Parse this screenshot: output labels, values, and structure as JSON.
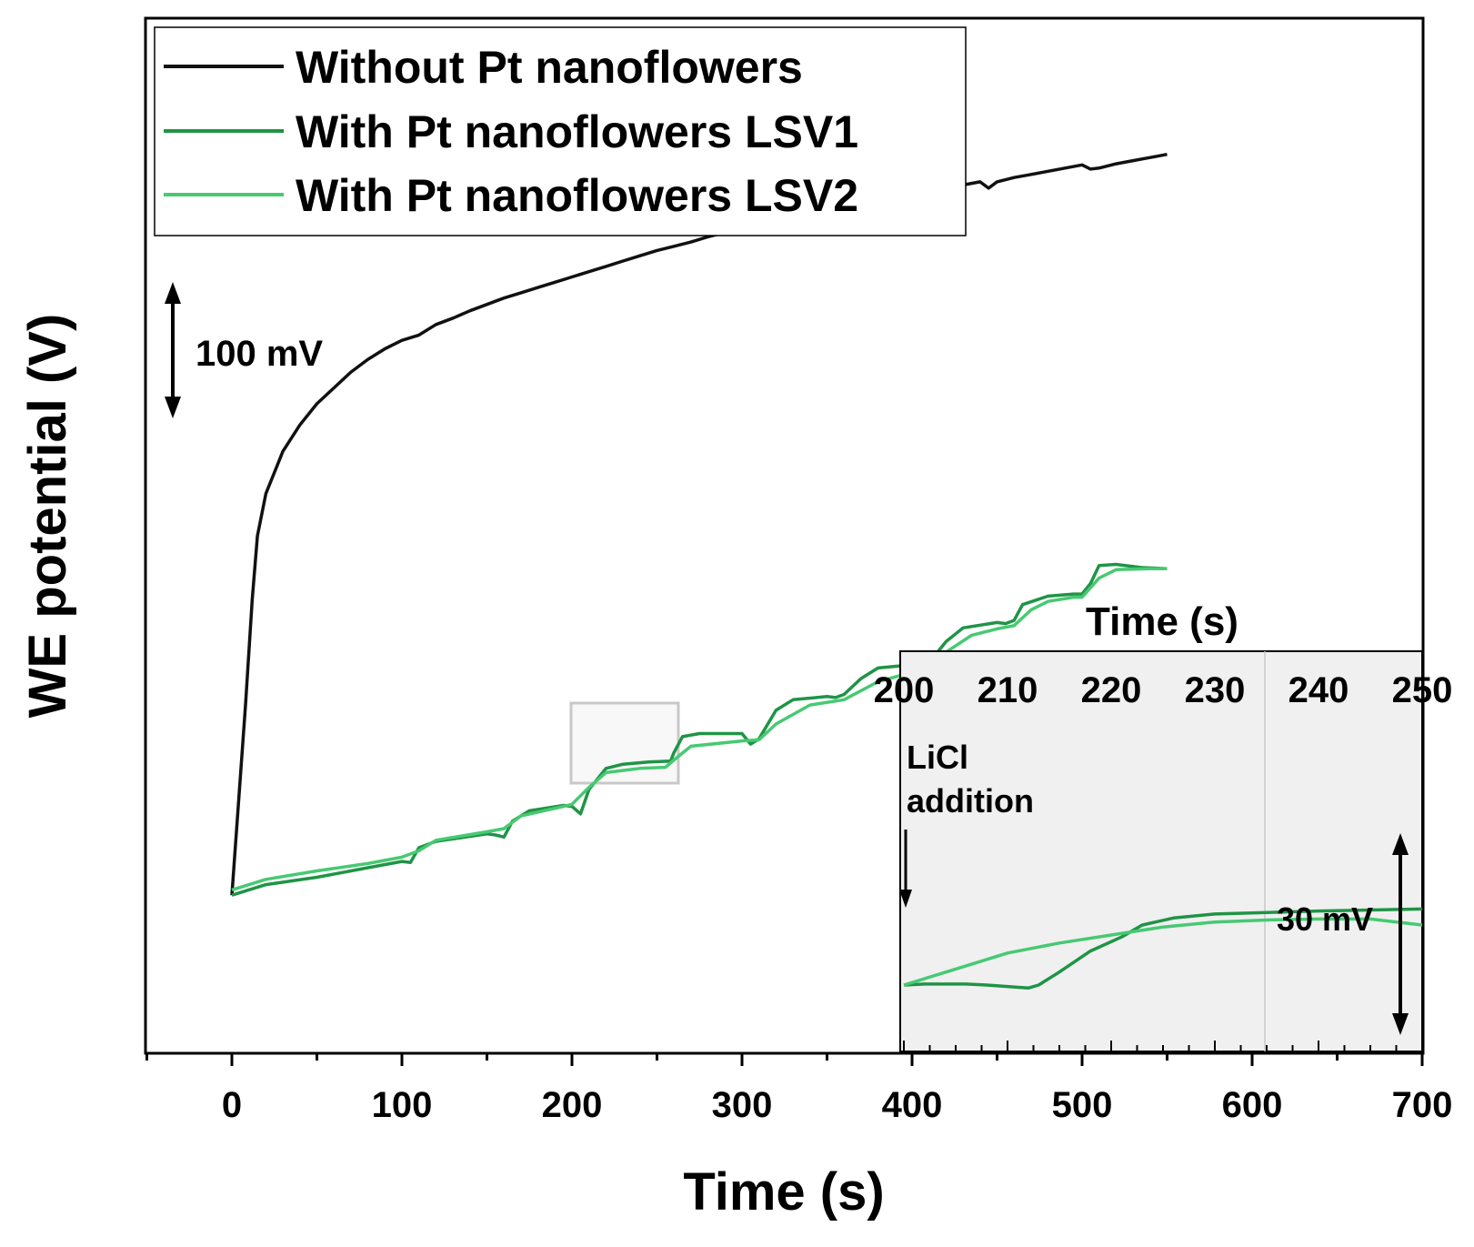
{
  "chart_data": {
    "type": "line",
    "ylabel": "WE potential (V)",
    "xlabel": "Time (s)",
    "xlim": [
      -50,
      700
    ],
    "x_ticks": [
      "0",
      "100",
      "200",
      "300",
      "400",
      "500",
      "600",
      "700"
    ],
    "y_ticks_shown": false,
    "grid": false,
    "legend_position": "top-left",
    "scale_annotation": "100 mV",
    "series": [
      {
        "name": "Without Pt nanoflowers",
        "color": "#111111",
        "points": [
          [
            0,
            -0.02
          ],
          [
            4,
            0.07
          ],
          [
            8,
            0.16
          ],
          [
            12,
            0.26
          ],
          [
            15,
            0.32
          ],
          [
            20,
            0.36
          ],
          [
            25,
            0.38
          ],
          [
            30,
            0.4
          ],
          [
            40,
            0.425
          ],
          [
            50,
            0.445
          ],
          [
            60,
            0.46
          ],
          [
            70,
            0.475
          ],
          [
            80,
            0.487
          ],
          [
            90,
            0.497
          ],
          [
            100,
            0.505
          ],
          [
            110,
            0.51
          ],
          [
            120,
            0.52
          ],
          [
            130,
            0.526
          ],
          [
            140,
            0.533
          ],
          [
            150,
            0.539
          ],
          [
            160,
            0.545
          ],
          [
            170,
            0.55
          ],
          [
            180,
            0.555
          ],
          [
            190,
            0.56
          ],
          [
            200,
            0.565
          ],
          [
            210,
            0.57
          ],
          [
            220,
            0.575
          ],
          [
            230,
            0.58
          ],
          [
            240,
            0.585
          ],
          [
            250,
            0.59
          ],
          [
            260,
            0.594
          ],
          [
            270,
            0.598
          ],
          [
            280,
            0.603
          ],
          [
            290,
            0.607
          ],
          [
            300,
            0.611
          ],
          [
            310,
            0.615
          ],
          [
            320,
            0.617
          ],
          [
            325,
            0.612
          ],
          [
            330,
            0.618
          ],
          [
            340,
            0.622
          ],
          [
            350,
            0.626
          ],
          [
            360,
            0.63
          ],
          [
            370,
            0.634
          ],
          [
            380,
            0.637
          ],
          [
            385,
            0.632
          ],
          [
            390,
            0.637
          ],
          [
            400,
            0.641
          ],
          [
            410,
            0.645
          ],
          [
            420,
            0.648
          ],
          [
            430,
            0.652
          ],
          [
            440,
            0.655
          ],
          [
            445,
            0.649
          ],
          [
            450,
            0.655
          ],
          [
            460,
            0.659
          ],
          [
            470,
            0.662
          ],
          [
            480,
            0.665
          ],
          [
            490,
            0.668
          ],
          [
            500,
            0.671
          ],
          [
            505,
            0.667
          ],
          [
            510,
            0.668
          ],
          [
            520,
            0.672
          ],
          [
            530,
            0.675
          ],
          [
            540,
            0.678
          ],
          [
            550,
            0.681
          ]
        ]
      },
      {
        "name": "With Pt nanoflowers LSV1",
        "color": "#1f9446",
        "points": [
          [
            0,
            -0.02
          ],
          [
            20,
            -0.01
          ],
          [
            50,
            -0.003
          ],
          [
            80,
            0.006
          ],
          [
            100,
            0.012
          ],
          [
            105,
            0.011
          ],
          [
            110,
            0.025
          ],
          [
            120,
            0.031
          ],
          [
            150,
            0.038
          ],
          [
            155,
            0.037
          ],
          [
            160,
            0.035
          ],
          [
            165,
            0.05
          ],
          [
            175,
            0.06
          ],
          [
            195,
            0.065
          ],
          [
            200,
            0.064
          ],
          [
            205,
            0.057
          ],
          [
            210,
            0.08
          ],
          [
            220,
            0.1
          ],
          [
            230,
            0.104
          ],
          [
            245,
            0.106
          ],
          [
            258,
            0.107
          ],
          [
            260,
            0.115
          ],
          [
            265,
            0.13
          ],
          [
            275,
            0.133
          ],
          [
            300,
            0.133
          ],
          [
            305,
            0.123
          ],
          [
            310,
            0.128
          ],
          [
            320,
            0.155
          ],
          [
            330,
            0.165
          ],
          [
            350,
            0.168
          ],
          [
            355,
            0.167
          ],
          [
            360,
            0.17
          ],
          [
            370,
            0.185
          ],
          [
            380,
            0.195
          ],
          [
            400,
            0.198
          ],
          [
            405,
            0.197
          ],
          [
            410,
            0.2
          ],
          [
            420,
            0.22
          ],
          [
            430,
            0.233
          ],
          [
            450,
            0.238
          ],
          [
            455,
            0.237
          ],
          [
            460,
            0.24
          ],
          [
            465,
            0.255
          ],
          [
            480,
            0.263
          ],
          [
            495,
            0.265
          ],
          [
            500,
            0.265
          ],
          [
            505,
            0.275
          ],
          [
            510,
            0.292
          ],
          [
            520,
            0.293
          ],
          [
            535,
            0.29
          ],
          [
            550,
            0.289
          ]
        ]
      },
      {
        "name": "With Pt nanoflowers LSV2",
        "color": "#47c972",
        "points": [
          [
            0,
            -0.015
          ],
          [
            20,
            -0.005
          ],
          [
            50,
            0.003
          ],
          [
            80,
            0.01
          ],
          [
            100,
            0.016
          ],
          [
            110,
            0.022
          ],
          [
            120,
            0.032
          ],
          [
            150,
            0.04
          ],
          [
            160,
            0.043
          ],
          [
            170,
            0.055
          ],
          [
            195,
            0.064
          ],
          [
            200,
            0.066
          ],
          [
            210,
            0.082
          ],
          [
            220,
            0.096
          ],
          [
            240,
            0.1
          ],
          [
            255,
            0.101
          ],
          [
            260,
            0.108
          ],
          [
            270,
            0.121
          ],
          [
            300,
            0.126
          ],
          [
            310,
            0.127
          ],
          [
            320,
            0.142
          ],
          [
            340,
            0.16
          ],
          [
            360,
            0.165
          ],
          [
            380,
            0.182
          ],
          [
            400,
            0.191
          ],
          [
            410,
            0.193
          ],
          [
            420,
            0.21
          ],
          [
            435,
            0.226
          ],
          [
            450,
            0.232
          ],
          [
            460,
            0.235
          ],
          [
            470,
            0.25
          ],
          [
            480,
            0.258
          ],
          [
            495,
            0.262
          ],
          [
            500,
            0.262
          ],
          [
            510,
            0.28
          ],
          [
            520,
            0.288
          ],
          [
            540,
            0.289
          ],
          [
            550,
            0.289
          ]
        ]
      }
    ],
    "inset": {
      "xlabel": "Time (s)",
      "x_ticks": [
        "200",
        "210",
        "220",
        "230",
        "240",
        "250"
      ],
      "annotation": "LiCl\naddition",
      "annotation_line1": "LiCl",
      "annotation_line2": "addition",
      "scale_annotation": "30 mV",
      "series": [
        {
          "name": "With Pt nanoflowers LSV1",
          "color": "#1f9446",
          "points": [
            [
              200,
              0.0
            ],
            [
              202,
              0.001
            ],
            [
              206,
              0.001
            ],
            [
              208,
              0.0
            ],
            [
              212,
              -0.003
            ],
            [
              213,
              0.0
            ],
            [
              215,
              0.013
            ],
            [
              218,
              0.034
            ],
            [
              221,
              0.048
            ],
            [
              223,
              0.06
            ],
            [
              226,
              0.067
            ],
            [
              230,
              0.071
            ],
            [
              240,
              0.074
            ],
            [
              250,
              0.076
            ]
          ]
        },
        {
          "name": "With Pt nanoflowers LSV2",
          "color": "#47c972",
          "points": [
            [
              200,
              0.0
            ],
            [
              205,
              0.016
            ],
            [
              210,
              0.032
            ],
            [
              215,
              0.042
            ],
            [
              220,
              0.05
            ],
            [
              225,
              0.058
            ],
            [
              230,
              0.063
            ],
            [
              235,
              0.065
            ],
            [
              240,
              0.066
            ],
            [
              245,
              0.066
            ],
            [
              250,
              0.06
            ]
          ]
        }
      ]
    }
  }
}
